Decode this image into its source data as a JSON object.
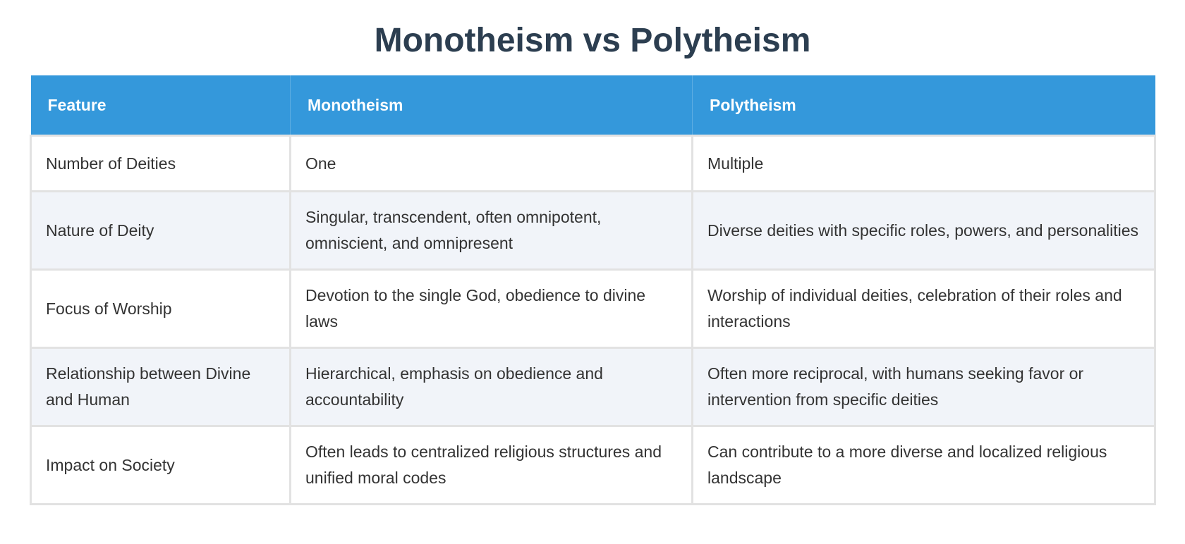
{
  "title": "Monotheism vs Polytheism",
  "columns": [
    "Feature",
    "Monotheism",
    "Polytheism"
  ],
  "rows": [
    [
      "Number of Deities",
      "One",
      "Multiple"
    ],
    [
      "Nature of Deity",
      "Singular, transcendent, often omnipotent, omniscient, and omnipresent",
      "Diverse deities with specific roles, powers, and personalities"
    ],
    [
      "Focus of Worship",
      "Devotion to the single God, obedience to divine laws",
      "Worship of individual deities, celebration of their roles and interactions"
    ],
    [
      "Relationship between Divine and Human",
      "Hierarchical, emphasis on obedience and accountability",
      "Often more reciprocal, with humans seeking favor or intervention from specific deities"
    ],
    [
      "Impact on Society",
      "Often leads to centralized religious structures and unified moral codes",
      "Can contribute to a more diverse and localized religious landscape"
    ]
  ],
  "colors": {
    "header": "#3498db",
    "title": "#2c3e50",
    "stripe": "#f1f4f9"
  }
}
